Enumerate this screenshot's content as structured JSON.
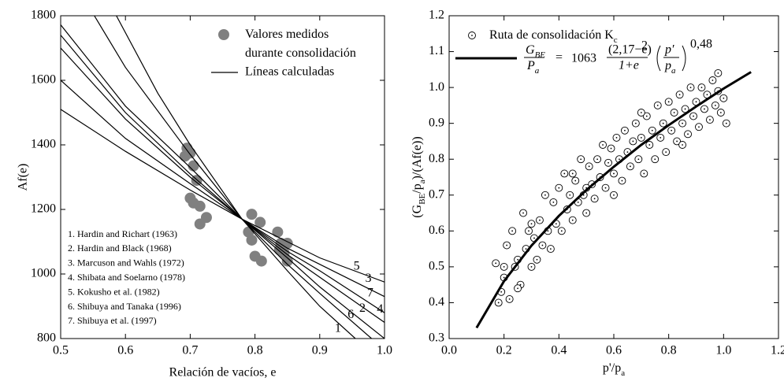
{
  "chart_data": [
    {
      "type": "line",
      "xlabel": "Relación de vacíos, e",
      "ylabel": "Af(e)",
      "xlim": [
        0.5,
        1.0
      ],
      "ylim": [
        800,
        1800
      ],
      "xticks": [
        0.5,
        0.6,
        0.7,
        0.8,
        0.9,
        {
          "value": 1,
          "label": "1.0"
        }
      ],
      "yticks": [
        800,
        1000,
        1200,
        1400,
        1600,
        1800
      ],
      "legend_position": "top-right",
      "series": [
        {
          "name": "Valores medidos durante consolidación",
          "type": "scatter",
          "marker": "filled",
          "color": "#808080",
          "x": [
            0.695,
            0.7,
            0.692,
            0.705,
            0.71,
            0.7,
            0.705,
            0.715,
            0.725,
            0.715,
            0.795,
            0.808,
            0.79,
            0.795,
            0.835,
            0.8,
            0.81,
            0.84,
            0.85,
            0.838,
            0.845,
            0.85
          ],
          "values": [
            1390,
            1375,
            1365,
            1335,
            1290,
            1235,
            1220,
            1210,
            1175,
            1155,
            1185,
            1160,
            1130,
            1105,
            1130,
            1055,
            1040,
            1095,
            1095,
            1075,
            1065,
            1040
          ]
        },
        {
          "name": "Líneas calculadas",
          "type": "legend-line",
          "color": "#000000"
        },
        {
          "name": "1",
          "type": "line",
          "color": "#000000",
          "x": [
            0.586,
            0.65,
            0.7,
            0.78,
            0.85,
            0.9,
            0.955
          ],
          "values": [
            1800,
            1560,
            1400,
            1170,
            1010,
            900,
            800
          ]
        },
        {
          "name": "6",
          "type": "line",
          "color": "#000000",
          "x": [
            0.552,
            0.6,
            0.7,
            0.78,
            0.85,
            0.9,
            0.98
          ],
          "values": [
            1800,
            1640,
            1370,
            1170,
            1030,
            940,
            800
          ]
        },
        {
          "name": "2",
          "type": "line",
          "color": "#000000",
          "x": [
            0.5,
            0.6,
            0.7,
            0.78,
            0.85,
            0.9,
            1.0
          ],
          "values": [
            1772,
            1520,
            1330,
            1170,
            1050,
            960,
            800
          ]
        },
        {
          "name": "7",
          "type": "line",
          "color": "#000000",
          "x": [
            0.5,
            0.6,
            0.7,
            0.78,
            0.85,
            0.9,
            1.0
          ],
          "values": [
            1740,
            1500,
            1310,
            1170,
            1060,
            990,
            850
          ]
        },
        {
          "name": "4",
          "type": "line",
          "color": "#000000",
          "x": [
            0.5,
            0.6,
            0.7,
            0.78,
            0.85,
            0.9,
            1.0
          ],
          "values": [
            1700,
            1480,
            1300,
            1170,
            1070,
            1010,
            880
          ]
        },
        {
          "name": "3",
          "type": "line",
          "color": "#000000",
          "x": [
            0.5,
            0.6,
            0.7,
            0.78,
            0.85,
            0.9,
            1.0
          ],
          "values": [
            1600,
            1420,
            1280,
            1170,
            1080,
            1030,
            930
          ]
        },
        {
          "name": "5",
          "type": "line",
          "color": "#000000",
          "x": [
            0.5,
            0.6,
            0.7,
            0.78,
            0.85,
            0.9,
            1.0
          ],
          "values": [
            1510,
            1380,
            1260,
            1170,
            1100,
            1050,
            975
          ]
        }
      ],
      "annotations": [
        "1. Hardin and Richart (1963)",
        "2. Hardin and Black (1968)",
        "3. Marcuson and Wahls (1972)",
        "4. Shibata and Soelarno (1978)",
        "5. Kokusho et al. (1982)",
        "6. Shibuya and Tanaka (1996)",
        "7. Shibuya et al. (1997)"
      ]
    },
    {
      "type": "scatter",
      "xlabel": [
        "p'/p",
        "a"
      ],
      "ylabel": [
        "(G",
        "BE",
        "/p",
        "a",
        ")/(Af(e))"
      ],
      "xlim": [
        0,
        1.2
      ],
      "ylim": [
        0.3,
        1.2
      ],
      "xticks": [
        {
          "value": 0,
          "label": "0.0"
        },
        0.2,
        0.4,
        0.6,
        0.8,
        {
          "value": 1,
          "label": "1.0"
        },
        1.2
      ],
      "yticks": [
        0.3,
        0.4,
        0.5,
        0.6,
        0.7,
        0.8,
        0.9,
        {
          "value": 1,
          "label": "1.0"
        },
        1.1,
        1.2
      ],
      "legend_position": "top-left",
      "series": [
        {
          "name": [
            "Ruta de consolidación K",
            "c"
          ],
          "type": "scatter",
          "marker": "dotted-circle",
          "color": "#000000",
          "x": [
            0.17,
            0.18,
            0.19,
            0.2,
            0.21,
            0.22,
            0.23,
            0.24,
            0.25,
            0.26,
            0.27,
            0.28,
            0.29,
            0.3,
            0.31,
            0.32,
            0.33,
            0.34,
            0.35,
            0.36,
            0.37,
            0.38,
            0.39,
            0.4,
            0.41,
            0.42,
            0.43,
            0.44,
            0.45,
            0.46,
            0.47,
            0.48,
            0.49,
            0.5,
            0.51,
            0.52,
            0.53,
            0.54,
            0.55,
            0.56,
            0.57,
            0.58,
            0.59,
            0.6,
            0.61,
            0.62,
            0.63,
            0.64,
            0.65,
            0.66,
            0.67,
            0.68,
            0.69,
            0.7,
            0.71,
            0.72,
            0.73,
            0.74,
            0.75,
            0.76,
            0.77,
            0.78,
            0.79,
            0.8,
            0.81,
            0.82,
            0.83,
            0.84,
            0.85,
            0.86,
            0.87,
            0.88,
            0.89,
            0.9,
            0.91,
            0.92,
            0.93,
            0.94,
            0.95,
            0.96,
            0.97,
            0.98,
            0.99,
            1.0,
            1.01,
            0.98,
            0.25,
            0.3,
            0.45,
            0.6,
            0.7,
            0.85,
            0.2,
            0.5
          ],
          "values": [
            0.51,
            0.4,
            0.43,
            0.47,
            0.56,
            0.41,
            0.6,
            0.5,
            0.52,
            0.45,
            0.65,
            0.55,
            0.6,
            0.5,
            0.58,
            0.52,
            0.63,
            0.56,
            0.7,
            0.6,
            0.55,
            0.68,
            0.62,
            0.72,
            0.6,
            0.76,
            0.66,
            0.7,
            0.63,
            0.74,
            0.68,
            0.8,
            0.7,
            0.65,
            0.78,
            0.73,
            0.69,
            0.8,
            0.75,
            0.84,
            0.72,
            0.79,
            0.83,
            0.76,
            0.86,
            0.8,
            0.74,
            0.88,
            0.82,
            0.78,
            0.85,
            0.9,
            0.8,
            0.86,
            0.76,
            0.92,
            0.84,
            0.88,
            0.8,
            0.95,
            0.86,
            0.9,
            0.82,
            0.96,
            0.88,
            0.93,
            0.85,
            0.98,
            0.9,
            0.94,
            0.87,
            1.0,
            0.92,
            0.96,
            0.89,
            1.0,
            0.94,
            0.98,
            0.91,
            1.02,
            0.95,
            1.04,
            0.93,
            0.97,
            0.9,
            0.99,
            0.44,
            0.62,
            0.76,
            0.7,
            0.93,
            0.84,
            0.5,
            0.72
          ]
        },
        {
          "name": "fit",
          "type": "line",
          "color": "#000000",
          "x": [
            0.1,
            0.2,
            0.3,
            0.4,
            0.5,
            0.6,
            0.7,
            0.8,
            0.9,
            1.0,
            1.1
          ],
          "values": [
            0.33,
            0.46,
            0.559,
            0.642,
            0.714,
            0.779,
            0.84,
            0.895,
            0.947,
            0.997,
            1.043
          ]
        }
      ],
      "equation": {
        "lhs_num": [
          "G",
          "BE"
        ],
        "lhs_den": [
          "P",
          "a"
        ],
        "equals": "=",
        "coef": "1063",
        "num": "(2,17−e)",
        "num_exp": "2",
        "den": "1+e",
        "inner_num": "p′",
        "inner_den": [
          "p",
          "a"
        ],
        "exponent": "0,48"
      }
    }
  ]
}
